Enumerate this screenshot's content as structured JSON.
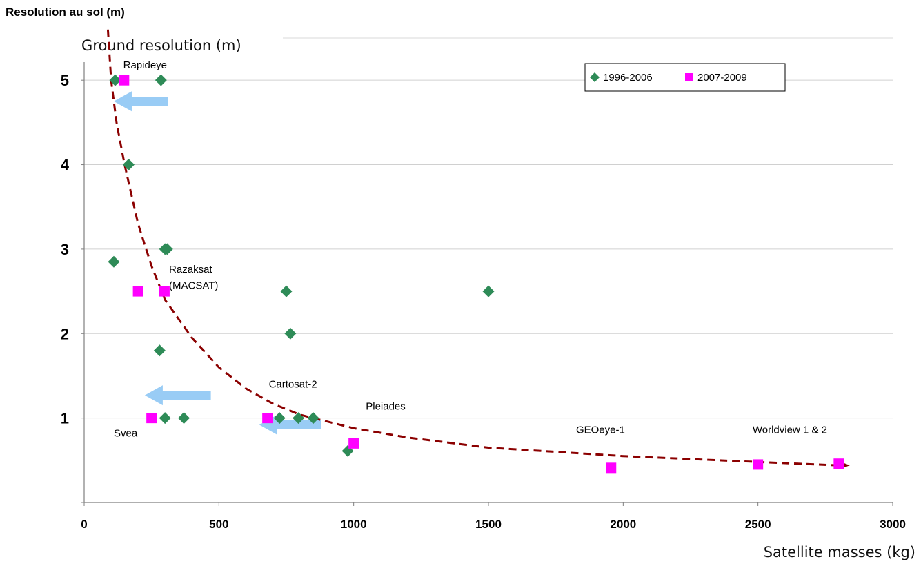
{
  "chart_data": {
    "type": "scatter",
    "title": "Resolution au sol (m)",
    "ylabel": "Ground resolution (m)",
    "xlabel": "Satellite masses (kg)",
    "xlim": [
      0,
      3000
    ],
    "ylim": [
      0,
      5.5
    ],
    "x_ticks": [
      0,
      500,
      1000,
      1500,
      2000,
      2500,
      3000
    ],
    "y_ticks": [
      1,
      2,
      3,
      4,
      5
    ],
    "grid": "horizontal",
    "legend_position": "top-right",
    "series": [
      {
        "name": "1996-2006",
        "marker": "diamond",
        "color": "#2e8b57",
        "points": [
          {
            "x": 115,
            "y": 5.0
          },
          {
            "x": 285,
            "y": 5.0
          },
          {
            "x": 165,
            "y": 4.0
          },
          {
            "x": 300,
            "y": 3.0
          },
          {
            "x": 308,
            "y": 3.0
          },
          {
            "x": 110,
            "y": 2.85
          },
          {
            "x": 750,
            "y": 2.5
          },
          {
            "x": 1500,
            "y": 2.5
          },
          {
            "x": 765,
            "y": 2.0
          },
          {
            "x": 280,
            "y": 1.8
          },
          {
            "x": 300,
            "y": 1.0
          },
          {
            "x": 370,
            "y": 1.0
          },
          {
            "x": 725,
            "y": 1.0
          },
          {
            "x": 795,
            "y": 1.0
          },
          {
            "x": 850,
            "y": 1.0
          },
          {
            "x": 978,
            "y": 0.61
          }
        ]
      },
      {
        "name": "2007-2009",
        "marker": "square",
        "color": "#ff00ff",
        "points": [
          {
            "x": 148,
            "y": 5.0
          },
          {
            "x": 200,
            "y": 2.5
          },
          {
            "x": 298,
            "y": 2.5
          },
          {
            "x": 250,
            "y": 1.0
          },
          {
            "x": 680,
            "y": 1.0
          },
          {
            "x": 1000,
            "y": 0.7
          },
          {
            "x": 1955,
            "y": 0.41
          },
          {
            "x": 2500,
            "y": 0.45
          },
          {
            "x": 2800,
            "y": 0.46
          }
        ]
      }
    ],
    "trend_curve": {
      "style": "dashed",
      "color": "#8b0000",
      "points": [
        {
          "x": 88,
          "y": 5.6
        },
        {
          "x": 100,
          "y": 5.0
        },
        {
          "x": 120,
          "y": 4.5
        },
        {
          "x": 150,
          "y": 4.0
        },
        {
          "x": 200,
          "y": 3.3
        },
        {
          "x": 250,
          "y": 2.8
        },
        {
          "x": 300,
          "y": 2.4
        },
        {
          "x": 400,
          "y": 1.95
        },
        {
          "x": 500,
          "y": 1.6
        },
        {
          "x": 600,
          "y": 1.35
        },
        {
          "x": 700,
          "y": 1.17
        },
        {
          "x": 800,
          "y": 1.04
        },
        {
          "x": 1000,
          "y": 0.88
        },
        {
          "x": 1200,
          "y": 0.77
        },
        {
          "x": 1500,
          "y": 0.65
        },
        {
          "x": 2000,
          "y": 0.55
        },
        {
          "x": 2500,
          "y": 0.48
        },
        {
          "x": 2800,
          "y": 0.44
        }
      ]
    },
    "arrows": [
      {
        "from_x": 310,
        "to_x": 110,
        "y": 4.75
      },
      {
        "from_x": 470,
        "to_x": 225,
        "y": 1.27
      },
      {
        "from_x": 880,
        "to_x": 650,
        "y": 0.92
      }
    ],
    "annotations": [
      {
        "text": "Rapideye",
        "x": 145,
        "y": 5.14
      },
      {
        "text": "Razaksat",
        "x": 315,
        "y": 2.72
      },
      {
        "text": "(MACSAT)",
        "x": 315,
        "y": 2.53
      },
      {
        "text": "Svea",
        "x": 110,
        "y": 0.78
      },
      {
        "text": "Cartosat-2",
        "x": 685,
        "y": 1.36
      },
      {
        "text": "Pleiades",
        "x": 1045,
        "y": 1.1
      },
      {
        "text": "GEOeye-1",
        "x": 1825,
        "y": 0.82
      },
      {
        "text": "Worldview 1 & 2",
        "x": 2480,
        "y": 0.82
      }
    ]
  }
}
